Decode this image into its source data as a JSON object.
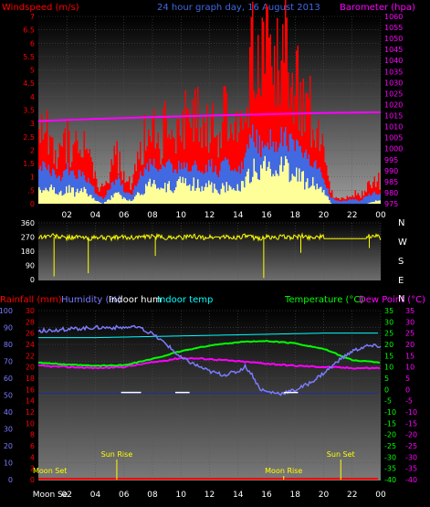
{
  "header": {
    "wind_label": "Windspeed (m/s)",
    "title": "24 hour graph day, 16 August 2013",
    "baro_label": "Barometer (hpa)"
  },
  "lower_header": {
    "rain_label": "Rainfall (mm)",
    "hum_label": "Humidity (%)",
    "indoor_hum_label": "Indoor hum",
    "indoor_temp_label": "Indoor temp",
    "temp_label": "Temperature (°C)",
    "dew_label": "Dew Point (°C)"
  },
  "colors": {
    "wind_gust": "#ff0000",
    "wind_avg": "#4169e1",
    "wind_calm": "#ffff99",
    "barometer": "#ff00ff",
    "direction": "#ffff00",
    "humidity": "#7b7bff",
    "indoor_temp": "#00ffff",
    "temperature": "#00ff00",
    "dew_point": "#ff00ff",
    "indoor_hum": "#ffffff",
    "rainfall": "#ff0000",
    "astro": "#ffff00",
    "barometer_axis": "#ff00ff"
  },
  "chart_data": [
    {
      "type": "bar",
      "name": "wind",
      "title": "24 hour graph day, 16 August 2013",
      "ylabel": "Windspeed (m/s)",
      "y2label": "Barometer (hpa)",
      "x_ticks": [
        "02",
        "04",
        "06",
        "08",
        "10",
        "12",
        "14",
        "16",
        "18",
        "20",
        "22",
        "00"
      ],
      "x_range": [
        0,
        24
      ],
      "ylim": [
        0,
        7
      ],
      "y_ticks": [
        "0",
        ".5",
        "1",
        "1.5",
        "2",
        "2.5",
        "3",
        "3.5",
        "4",
        "4.5",
        "5",
        "5.5",
        "6",
        "6.5",
        "7"
      ],
      "y2lim": [
        975,
        1060
      ],
      "y2_ticks": [
        "975",
        "980",
        "985",
        "990",
        "995",
        "1000",
        "1005",
        "1010",
        "1015",
        "1020",
        "1025",
        "1030",
        "1035",
        "1040",
        "1045",
        "1050",
        "1055",
        "1060"
      ],
      "series": [
        {
          "name": "Windspeed",
          "x": [
            0,
            0.5,
            1,
            1.5,
            2,
            2.5,
            3,
            3.5,
            4,
            4.5,
            5,
            5.5,
            6,
            6.5,
            7,
            7.5,
            8,
            8.5,
            9,
            9.5,
            10,
            10.5,
            11,
            11.5,
            12,
            12.5,
            13,
            13.5,
            14,
            14.5,
            15,
            15.5,
            16,
            16.5,
            17,
            17.5,
            18,
            18.5,
            19,
            19.5,
            20,
            20.5,
            21,
            21.5,
            22,
            22.5,
            23,
            23.5,
            24
          ],
          "gust": [
            3.0,
            2.6,
            2.2,
            1.8,
            2.4,
            2.0,
            2.3,
            1.8,
            0.9,
            0.5,
            1.2,
            2.0,
            1.0,
            0.6,
            2.0,
            2.6,
            3.2,
            2.4,
            3.0,
            2.2,
            3.4,
            2.8,
            3.5,
            2.6,
            3.0,
            2.4,
            3.2,
            2.8,
            2.6,
            3.6,
            5.8,
            4.6,
            6.0,
            4.8,
            6.4,
            5.0,
            4.6,
            4.0,
            3.6,
            2.8,
            2.0,
            0.4,
            0.2,
            0.2,
            0.4,
            0.3,
            0.6,
            1.0,
            0.8
          ],
          "avg": [
            1.6,
            1.4,
            1.1,
            1.0,
            1.3,
            1.0,
            1.2,
            0.9,
            0.4,
            0.2,
            0.6,
            1.0,
            0.5,
            0.3,
            1.0,
            1.3,
            1.6,
            1.2,
            1.5,
            1.1,
            1.6,
            1.3,
            1.6,
            1.2,
            1.5,
            1.1,
            1.5,
            1.3,
            1.3,
            1.7,
            2.6,
            2.1,
            2.5,
            2.2,
            2.6,
            2.3,
            2.1,
            1.9,
            1.7,
            1.3,
            0.9,
            0.2,
            0.1,
            0.1,
            0.2,
            0.1,
            0.3,
            0.4,
            0.4
          ],
          "low": [
            0.7,
            0.6,
            0.5,
            0.4,
            0.6,
            0.4,
            0.5,
            0.4,
            0.1,
            0.0,
            0.2,
            0.4,
            0.2,
            0.1,
            0.4,
            0.6,
            0.8,
            0.5,
            0.7,
            0.5,
            0.8,
            0.6,
            0.8,
            0.5,
            0.7,
            0.5,
            0.7,
            0.6,
            0.6,
            0.8,
            1.4,
            1.0,
            1.4,
            1.1,
            1.4,
            1.2,
            1.0,
            0.9,
            0.8,
            0.6,
            0.4,
            0.0,
            0.0,
            0.0,
            0.0,
            0.0,
            0.0,
            0.1,
            0.1
          ]
        },
        {
          "name": "Barometer",
          "x": [
            0,
            4,
            8,
            12,
            16,
            20,
            24
          ],
          "values": [
            1012.5,
            1013.5,
            1014.3,
            1015.0,
            1015.6,
            1016.2,
            1016.5
          ]
        }
      ]
    },
    {
      "type": "scatter",
      "name": "wind direction",
      "x_range": [
        0,
        24
      ],
      "ylim": [
        0,
        360
      ],
      "y_ticks": [
        "0",
        "90",
        "180",
        "270",
        "360"
      ],
      "y2_ticks": [
        "N",
        "W",
        "S",
        "E",
        "N"
      ],
      "x": [
        0,
        0.5,
        1,
        1.5,
        2,
        2.5,
        3,
        3.5,
        4,
        4.5,
        5,
        5.5,
        6,
        6.5,
        7,
        7.5,
        8,
        8.5,
        9,
        9.5,
        10,
        10.5,
        11,
        11.5,
        12,
        12.5,
        13,
        13.5,
        14,
        14.5,
        15,
        15.5,
        16,
        16.5,
        17,
        17.5,
        18,
        18.5,
        19,
        19.5,
        20,
        20.5,
        21,
        21.5,
        22,
        22.5,
        23,
        23.5,
        24
      ],
      "values": [
        270,
        275,
        280,
        270,
        265,
        272,
        268,
        260,
        265,
        270,
        262,
        268,
        270,
        265,
        272,
        268,
        275,
        270,
        265,
        272,
        268,
        270,
        275,
        265,
        270,
        268,
        272,
        265,
        270,
        275,
        268,
        262,
        270,
        265,
        272,
        268,
        270,
        275,
        268,
        272,
        270,
        270,
        270,
        270,
        270,
        270,
        270,
        280,
        265
      ]
    },
    {
      "type": "line",
      "name": "temperature humidity",
      "x_ticks": [
        "Moon Se",
        "02",
        "04",
        "06",
        "08",
        "10",
        "12",
        "14",
        "16",
        "18",
        "20",
        "22",
        "00"
      ],
      "x_range": [
        0,
        24
      ],
      "left_ticks": [
        "0",
        "10",
        "20",
        "30",
        "40",
        "50",
        "60",
        "70",
        "80",
        "90",
        "100"
      ],
      "rain_ticks": [
        "0",
        "2",
        "4",
        "6",
        "8",
        "10",
        "12",
        "14",
        "16",
        "18",
        "20",
        "22",
        "24",
        "26",
        "28",
        "30"
      ],
      "temp_ticks": [
        "-40",
        "-35",
        "-30",
        "-25",
        "-20",
        "-15",
        "-10",
        "-5",
        "0",
        "5",
        "10",
        "15",
        "20",
        "25",
        "30",
        "35"
      ],
      "temp_lim": [
        -40,
        35
      ],
      "series": [
        {
          "name": "Humidity",
          "x": [
            0,
            2,
            4,
            6,
            7,
            8,
            9,
            10,
            11,
            12,
            13,
            14,
            14.5,
            15,
            15.5,
            16,
            17,
            18,
            19,
            20,
            21,
            22,
            23,
            24
          ],
          "values": [
            88,
            89,
            90,
            90,
            90,
            86,
            80,
            72,
            68,
            64,
            62,
            64,
            67,
            62,
            54,
            52,
            51,
            53,
            57,
            63,
            70,
            76,
            79,
            79
          ]
        },
        {
          "name": "Indoor temp",
          "x": [
            0,
            4,
            8,
            12,
            16,
            20,
            24
          ],
          "values": [
            23.0,
            23.0,
            23.5,
            24.0,
            24.5,
            25.0,
            25.0
          ]
        },
        {
          "name": "Temperature",
          "x": [
            0,
            2,
            4,
            6,
            8,
            10,
            12,
            14,
            16,
            18,
            20,
            21,
            22,
            24
          ],
          "values": [
            12.0,
            11.0,
            10.5,
            10.8,
            13.5,
            17.0,
            19.5,
            21.0,
            21.5,
            20.5,
            18.0,
            15.5,
            13.0,
            12.0
          ]
        },
        {
          "name": "Dew Point",
          "x": [
            0,
            2,
            4,
            6,
            8,
            10,
            12,
            14,
            16,
            18,
            20,
            22,
            24
          ],
          "values": [
            10.5,
            10.0,
            9.5,
            10.0,
            12.0,
            14.0,
            13.5,
            12.5,
            11.5,
            10.5,
            10.0,
            9.5,
            9.5
          ]
        },
        {
          "name": "Indoor hum",
          "x": [
            0,
            24
          ],
          "values": [
            51,
            51
          ]
        },
        {
          "name": "Rainfall",
          "x": [
            0,
            24
          ],
          "values": [
            0,
            0
          ]
        }
      ],
      "annotations": [
        {
          "label": "Moon Set",
          "x": 0.05
        },
        {
          "label": "Sun Rise",
          "x": 5.5
        },
        {
          "label": "Moon Rise",
          "x": 17.2
        },
        {
          "label": "Sun Set",
          "x": 21.2
        }
      ]
    }
  ]
}
